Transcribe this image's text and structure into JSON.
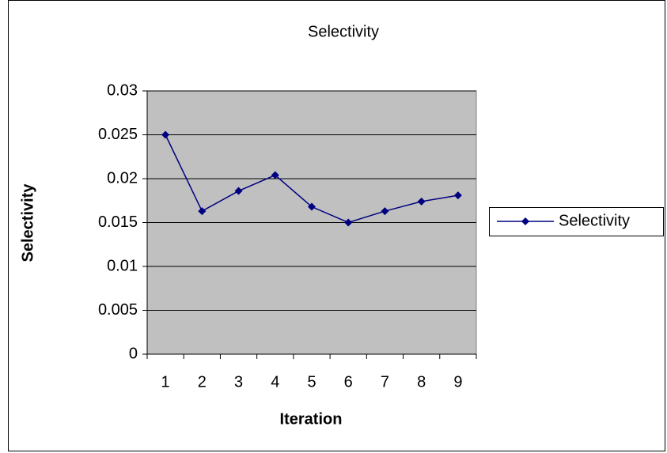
{
  "chart_data": {
    "type": "line",
    "title": "Selectivity",
    "x_label": "Iteration",
    "y_label": "Selectivity",
    "categories": [
      "1",
      "2",
      "3",
      "4",
      "5",
      "6",
      "7",
      "8",
      "9"
    ],
    "series": [
      {
        "name": "Selectivity",
        "color": "#000080",
        "values": [
          0.025,
          0.0163,
          0.0186,
          0.0204,
          0.0168,
          0.015,
          0.0163,
          0.0174,
          0.0181
        ]
      }
    ],
    "ylim": [
      0,
      0.03
    ],
    "yticks": [
      0,
      0.005,
      0.01,
      0.015,
      0.02,
      0.025,
      0.03
    ],
    "grid": true,
    "legend": "right",
    "plot_background": "#c0c0c0"
  }
}
